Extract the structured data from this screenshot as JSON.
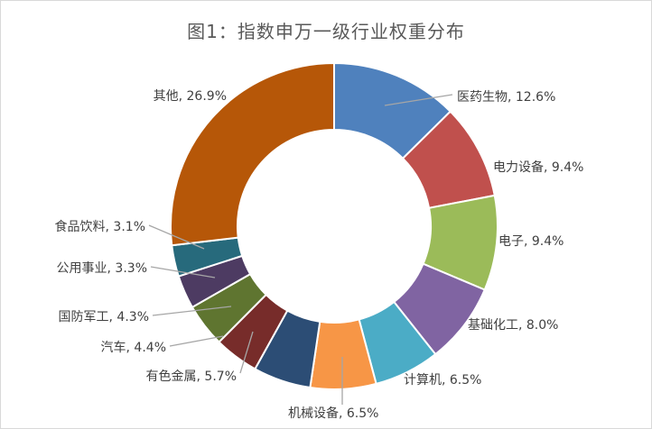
{
  "chart_data": {
    "type": "pie",
    "subtype": "donut",
    "title": "图1：指数申万一级行业权重分布",
    "categories": [
      "医药生物",
      "电力设备",
      "电子",
      "基础化工",
      "计算机",
      "机械设备",
      "有色金属",
      "汽车",
      "国防军工",
      "公用事业",
      "食品饮料",
      "其他"
    ],
    "values": [
      12.6,
      9.4,
      9.4,
      8.0,
      6.5,
      6.5,
      5.7,
      4.4,
      4.3,
      3.3,
      3.1,
      26.9
    ],
    "labels": [
      "医药生物, 12.6%",
      "电力设备, 9.4%",
      "电子, 9.4%",
      "基础化工, 8.0%",
      "计算机, 6.5%",
      "机械设备, 6.5%",
      "有色金属, 5.7%",
      "汽车, 4.4%",
      "国防军工, 4.3%",
      "公用事业, 3.3%",
      "食品饮料, 3.1%",
      "其他, 26.9%"
    ],
    "colors": [
      "#4f81bd",
      "#c0504d",
      "#9bbb59",
      "#8064a2",
      "#4bacc6",
      "#f79646",
      "#2c4d75",
      "#772c2a",
      "#5f7530",
      "#4d3b62",
      "#276a7c",
      "#b65708"
    ],
    "unit": "%",
    "legend": "none"
  }
}
